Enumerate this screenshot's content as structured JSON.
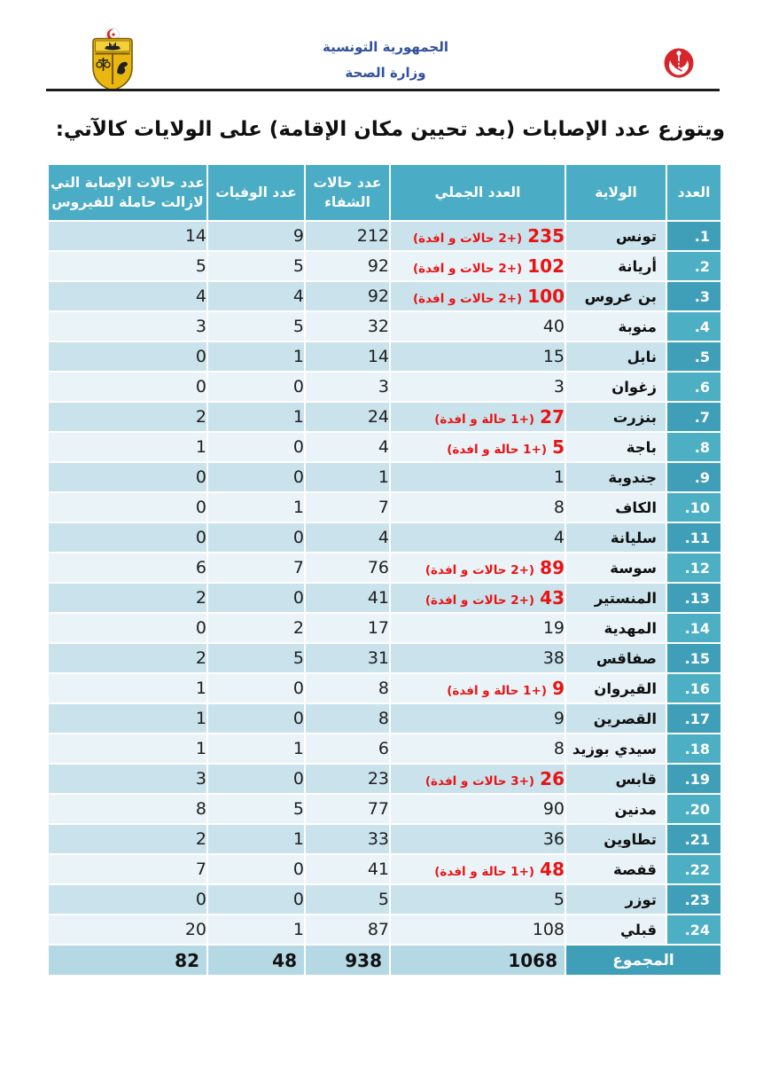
{
  "letterhead": {
    "republic": "الجمهورية التونسية",
    "ministry": "وزارة الصحة"
  },
  "title": "ويتوزع عدد الإصابات (بعد تحيين مكان الإقامة) على الولايات كالآتي:",
  "icons": {
    "coat_of_arms": "tunisia-coat-of-arms",
    "ministry_logo": "health-ministry-crescent-staff"
  },
  "colors": {
    "header_teal": "#4bacc6",
    "num_column_teal": "#3f9fb8",
    "row_stripe_dark": "#c9e2ec",
    "row_stripe_light": "#eaf3f8",
    "total_values_bg": "#b5d8e5",
    "highlight_red": "#e81414",
    "letterhead_blue": "#32509e"
  },
  "table": {
    "columns": {
      "num": "العدد",
      "governorate": "الولاية",
      "total": "العدد الجملي",
      "recovered": "عدد حالات الشفاء",
      "deaths": "عدد الوفيات",
      "active": "عدد حالات الإصابة التي لازالت حاملة للفيروس"
    },
    "rows": [
      {
        "num": "1.",
        "governorate": "تونس",
        "total": "235",
        "total_note": "(+2 حالات و افدة)",
        "recovered": "212",
        "deaths": "9",
        "active": "14"
      },
      {
        "num": "2.",
        "governorate": "أريانة",
        "total": "102",
        "total_note": "(+2 حالات و افدة)",
        "recovered": "92",
        "deaths": "5",
        "active": "5"
      },
      {
        "num": "3.",
        "governorate": "بن عروس",
        "total": "100",
        "total_note": "(+2 حالات و افدة)",
        "recovered": "92",
        "deaths": "4",
        "active": "4"
      },
      {
        "num": "4.",
        "governorate": "منوبة",
        "total": "40",
        "total_note": "",
        "recovered": "32",
        "deaths": "5",
        "active": "3"
      },
      {
        "num": "5.",
        "governorate": "نابل",
        "total": "15",
        "total_note": "",
        "recovered": "14",
        "deaths": "1",
        "active": "0"
      },
      {
        "num": "6.",
        "governorate": "زغوان",
        "total": "3",
        "total_note": "",
        "recovered": "3",
        "deaths": "0",
        "active": "0"
      },
      {
        "num": "7.",
        "governorate": "بنزرت",
        "total": "27",
        "total_note": "(+1 حالة و افدة)",
        "recovered": "24",
        "deaths": "1",
        "active": "2"
      },
      {
        "num": "8.",
        "governorate": "باجة",
        "total": "5",
        "total_note": "(+1 حالة و افدة)",
        "recovered": "4",
        "deaths": "0",
        "active": "1"
      },
      {
        "num": "9.",
        "governorate": "جندوبة",
        "total": "1",
        "total_note": "",
        "recovered": "1",
        "deaths": "0",
        "active": "0"
      },
      {
        "num": "10.",
        "governorate": "الكاف",
        "total": "8",
        "total_note": "",
        "recovered": "7",
        "deaths": "1",
        "active": "0"
      },
      {
        "num": "11.",
        "governorate": "سليانة",
        "total": "4",
        "total_note": "",
        "recovered": "4",
        "deaths": "0",
        "active": "0"
      },
      {
        "num": "12.",
        "governorate": "سوسة",
        "total": "89",
        "total_note": "(+2 حالات و افدة)",
        "recovered": "76",
        "deaths": "7",
        "active": "6"
      },
      {
        "num": "13.",
        "governorate": "المنستير",
        "total": "43",
        "total_note": "(+2 حالات و افدة)",
        "recovered": "41",
        "deaths": "0",
        "active": "2"
      },
      {
        "num": "14.",
        "governorate": "المهدية",
        "total": "19",
        "total_note": "",
        "recovered": "17",
        "deaths": "2",
        "active": "0"
      },
      {
        "num": "15.",
        "governorate": "صفاقس",
        "total": "38",
        "total_note": "",
        "recovered": "31",
        "deaths": "5",
        "active": "2"
      },
      {
        "num": "16.",
        "governorate": "القيروان",
        "total": "9",
        "total_note": "(+1 حالة و افدة)",
        "recovered": "8",
        "deaths": "0",
        "active": "1"
      },
      {
        "num": "17.",
        "governorate": "القصرين",
        "total": "9",
        "total_note": "",
        "recovered": "8",
        "deaths": "0",
        "active": "1"
      },
      {
        "num": "18.",
        "governorate": "سيدي بوزيد",
        "total": "8",
        "total_note": "",
        "recovered": "6",
        "deaths": "1",
        "active": "1"
      },
      {
        "num": "19.",
        "governorate": "قابس",
        "total": "26",
        "total_note": "(+3 حالات و افدة)",
        "recovered": "23",
        "deaths": "0",
        "active": "3"
      },
      {
        "num": "20.",
        "governorate": "مدنين",
        "total": "90",
        "total_note": "",
        "recovered": "77",
        "deaths": "5",
        "active": "8"
      },
      {
        "num": "21.",
        "governorate": "تطاوين",
        "total": "36",
        "total_note": "",
        "recovered": "33",
        "deaths": "1",
        "active": "2"
      },
      {
        "num": "22.",
        "governorate": "قفصة",
        "total": "48",
        "total_note": "(+1 حالة و افدة)",
        "recovered": "41",
        "deaths": "0",
        "active": "7"
      },
      {
        "num": "23.",
        "governorate": "توزر",
        "total": "5",
        "total_note": "",
        "recovered": "5",
        "deaths": "0",
        "active": "0"
      },
      {
        "num": "24.",
        "governorate": "قبلي",
        "total": "108",
        "total_note": "",
        "recovered": "87",
        "deaths": "1",
        "active": "20"
      }
    ],
    "total_row": {
      "label": "المجموع",
      "total": "1068",
      "recovered": "938",
      "deaths": "48",
      "active": "82"
    }
  }
}
